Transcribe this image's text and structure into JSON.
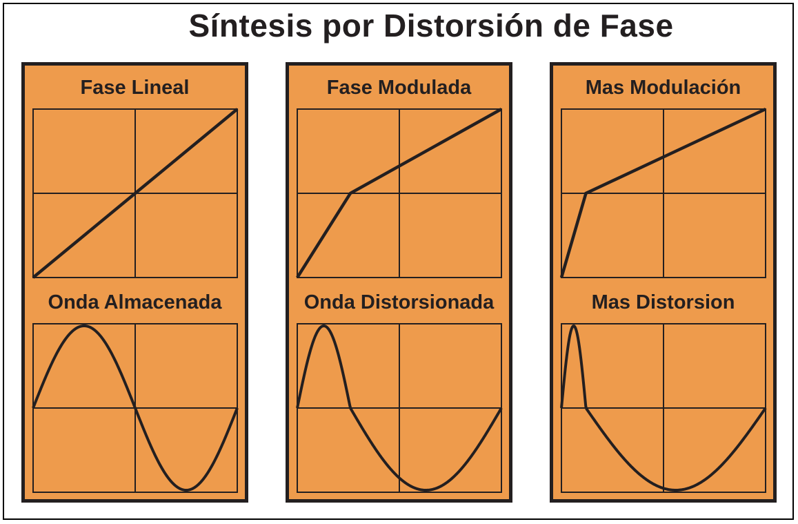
{
  "title": "Síntesis por Distorsión de Fase",
  "colors": {
    "panel": "#ee9b4c",
    "ink": "#231f20",
    "background": "#ffffff"
  },
  "panels": [
    {
      "phase_label": "Fase Lineal",
      "wave_label": "Onda Almacenada",
      "knee": [
        0.5,
        0.5
      ]
    },
    {
      "phase_label": "Fase Modulada",
      "wave_label": "Onda Distorsionada",
      "knee": [
        0.26,
        0.5
      ]
    },
    {
      "phase_label": "Mas Modulación",
      "wave_label": "Mas Distorsion",
      "knee": [
        0.12,
        0.5
      ]
    }
  ]
}
